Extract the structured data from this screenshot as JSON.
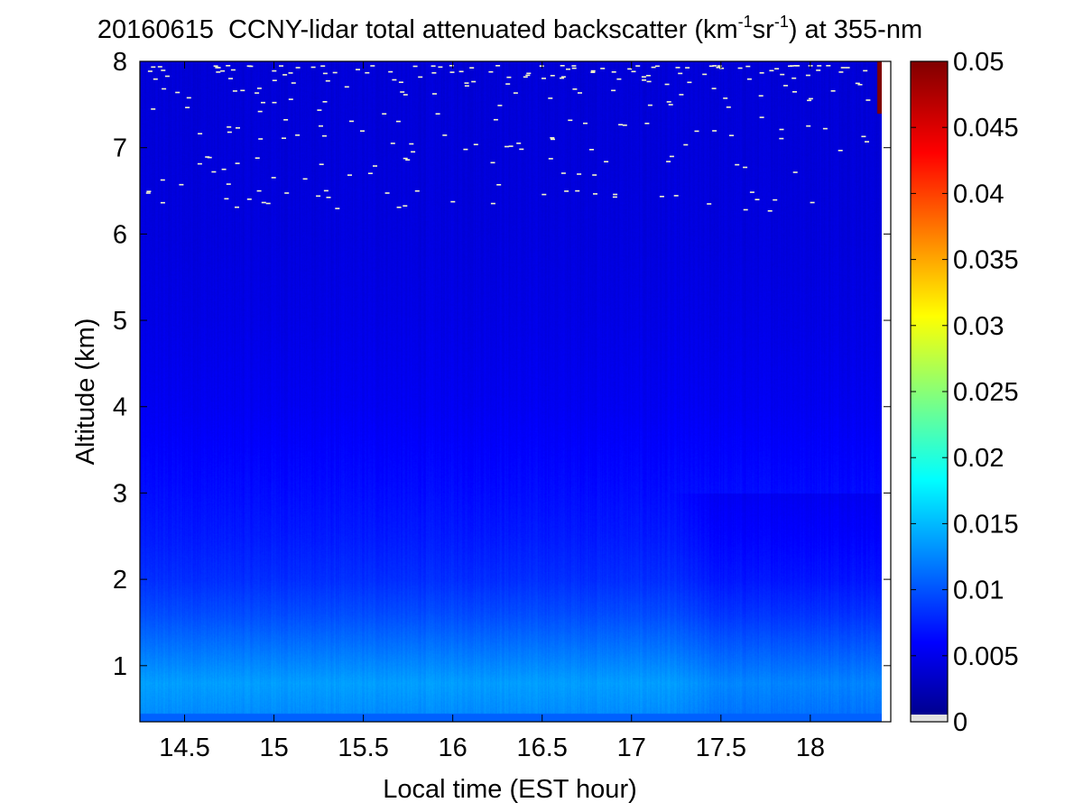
{
  "chart_data": {
    "type": "heatmap",
    "title": {
      "date": "20160615",
      "text_main": "CCNY-lidar total attenuated backscatter (km",
      "sup1": "-1",
      "text_mid": "sr",
      "sup2": "-1",
      "text_end": ") at 355-nm"
    },
    "xlabel": "Local time (EST hour)",
    "ylabel": "Altitude (km)",
    "xlim": [
      14.25,
      18.45
    ],
    "ylim": [
      0.35,
      8.0
    ],
    "x_ticks": [
      "14.5",
      "15",
      "15.5",
      "16",
      "16.5",
      "17",
      "17.5",
      "18"
    ],
    "y_ticks": [
      "1",
      "2",
      "3",
      "4",
      "5",
      "6",
      "7",
      "8"
    ],
    "colorbar": {
      "colormap": "jet",
      "range": [
        0,
        0.05
      ],
      "ticks": [
        "0",
        "0.005",
        "0.01",
        "0.015",
        "0.02",
        "0.025",
        "0.03",
        "0.035",
        "0.04",
        "0.045",
        "0.05"
      ]
    },
    "field_summary": {
      "description_value_by_altitude_km": [
        [
          0.4,
          0.013
        ],
        [
          0.8,
          0.014
        ],
        [
          1.2,
          0.012
        ],
        [
          1.6,
          0.01
        ],
        [
          2.0,
          0.0085
        ],
        [
          2.5,
          0.0075
        ],
        [
          3.0,
          0.0068
        ],
        [
          3.5,
          0.0062
        ],
        [
          4.0,
          0.0056
        ],
        [
          5.0,
          0.005
        ],
        [
          6.0,
          0.0046
        ],
        [
          7.0,
          0.0044
        ],
        [
          8.0,
          0.0043
        ]
      ],
      "late_afternoon_dimming_after_hour": 17.2,
      "high_value_column": {
        "x_range": [
          18.37,
          18.43
        ],
        "y_range": [
          7.4,
          8.0
        ],
        "value": 0.05
      },
      "noise_region_above_km": 6.3
    }
  }
}
